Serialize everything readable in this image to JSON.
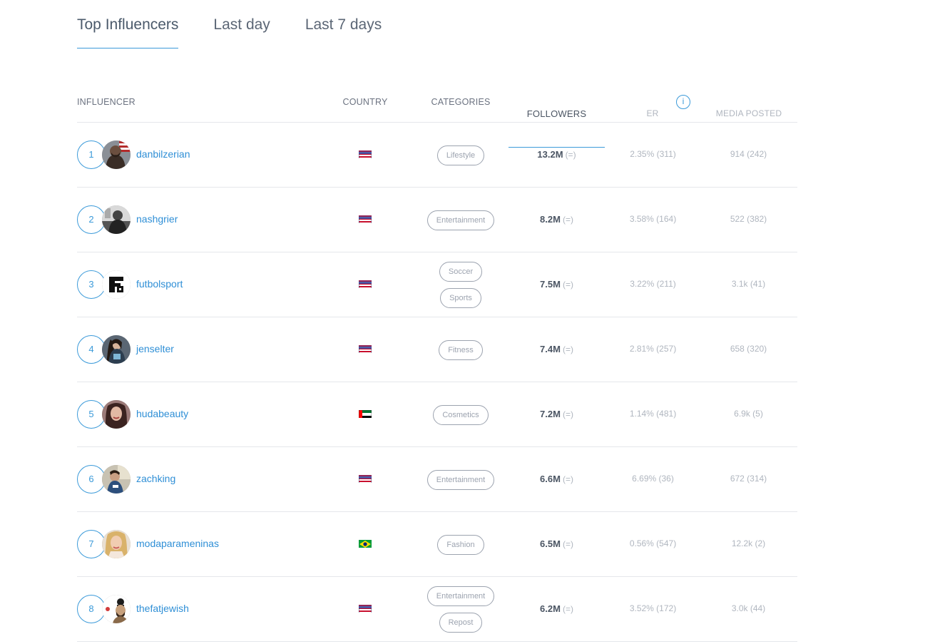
{
  "tabs": [
    {
      "label": "Top Influencers",
      "active": true
    },
    {
      "label": "Last day",
      "active": false
    },
    {
      "label": "Last 7 days",
      "active": false
    }
  ],
  "columns": {
    "influencer": "INFLUENCER",
    "country": "COUNTRY",
    "categories": "CATEGORIES",
    "followers": "FOLLOWERS",
    "er": "ER",
    "info": "i",
    "media": "MEDIA POSTED"
  },
  "accent_color": "#3b9ad9",
  "rows": [
    {
      "rank": "1",
      "username": "danbilzerian",
      "country_icon": "us-flag-icon",
      "categories": [
        "Lifestyle"
      ],
      "followers": "13.2M",
      "change": "(=)",
      "er": "2.35% (311)",
      "media": "914 (242)"
    },
    {
      "rank": "2",
      "username": "nashgrier",
      "country_icon": "us-flag-icon",
      "categories": [
        "Entertainment"
      ],
      "followers": "8.2M",
      "change": "(=)",
      "er": "3.58% (164)",
      "media": "522 (382)"
    },
    {
      "rank": "3",
      "username": "futbolsport",
      "country_icon": "us-flag-icon",
      "categories": [
        "Soccer",
        "Sports"
      ],
      "followers": "7.5M",
      "change": "(=)",
      "er": "3.22% (211)",
      "media": "3.1k (41)"
    },
    {
      "rank": "4",
      "username": "jenselter",
      "country_icon": "us-flag-icon",
      "categories": [
        "Fitness"
      ],
      "followers": "7.4M",
      "change": "(=)",
      "er": "2.81% (257)",
      "media": "658 (320)"
    },
    {
      "rank": "5",
      "username": "hudabeauty",
      "country_icon": "uae-flag-icon",
      "categories": [
        "Cosmetics"
      ],
      "followers": "7.2M",
      "change": "(=)",
      "er": "1.14% (481)",
      "media": "6.9k (5)"
    },
    {
      "rank": "6",
      "username": "zachking",
      "country_icon": "us-flag-icon",
      "categories": [
        "Entertainment"
      ],
      "followers": "6.6M",
      "change": "(=)",
      "er": "6.69% (36)",
      "media": "672 (314)"
    },
    {
      "rank": "7",
      "username": "modaparameninas",
      "country_icon": "brazil-flag-icon",
      "categories": [
        "Fashion"
      ],
      "followers": "6.5M",
      "change": "(=)",
      "er": "0.56% (547)",
      "media": "12.2k (2)"
    },
    {
      "rank": "8",
      "username": "thefatjewish",
      "country_icon": "us-flag-icon",
      "categories": [
        "Entertainment",
        "Repost"
      ],
      "followers": "6.2M",
      "change": "(=)",
      "er": "3.52% (172)",
      "media": "3.0k (44)"
    }
  ]
}
